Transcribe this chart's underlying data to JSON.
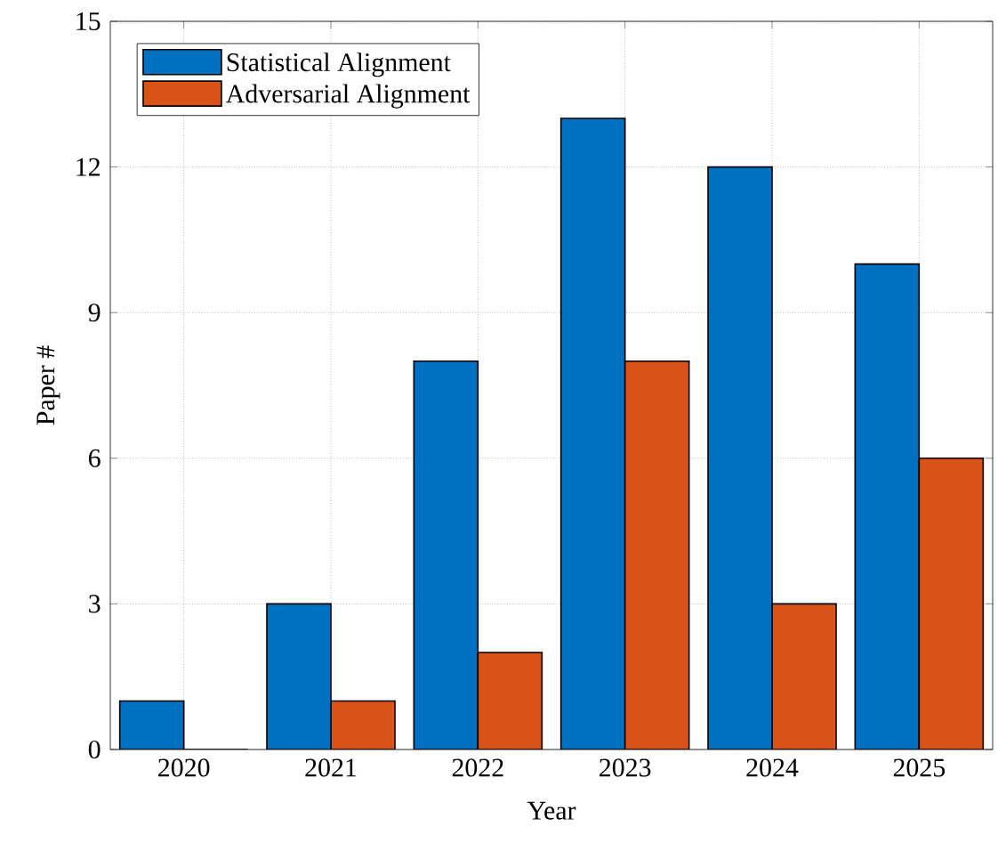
{
  "chart_data": {
    "type": "bar",
    "xlabel": "Year",
    "ylabel": "Paper #",
    "categories": [
      "2020",
      "2021",
      "2022",
      "2023",
      "2024",
      "2025"
    ],
    "series": [
      {
        "name": "Statistical Alignment",
        "color": "#0070c0",
        "values": [
          1,
          3,
          8,
          13,
          12,
          10
        ]
      },
      {
        "name": "Adversarial Alignment",
        "color": "#d95319",
        "values": [
          0,
          1,
          2,
          8,
          3,
          6
        ]
      }
    ],
    "ylim": [
      0,
      15
    ],
    "yticks": [
      0,
      3,
      6,
      9,
      12,
      15
    ],
    "grid": true,
    "legend": "top left"
  }
}
